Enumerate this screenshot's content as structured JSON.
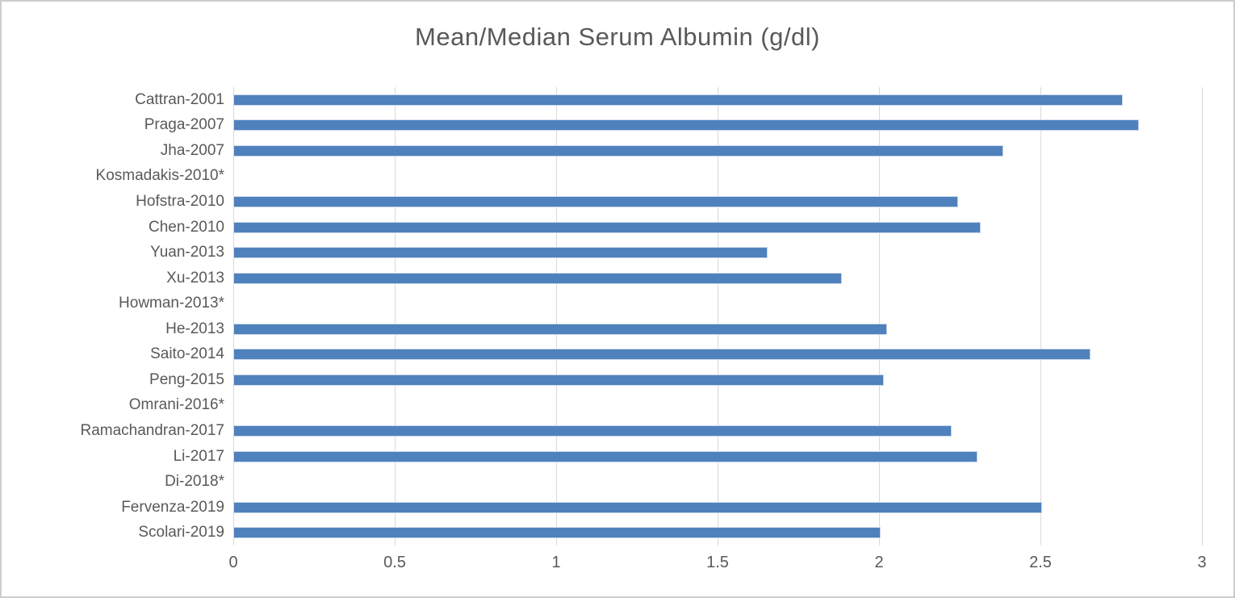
{
  "window": {
    "background": "#ffffff",
    "border_color": "#cdcdcd"
  },
  "chart_data": {
    "type": "bar",
    "orientation": "horizontal",
    "title": "Mean/Median Serum Albumin (g/dl)",
    "categories": [
      "Cattran-2001",
      "Praga-2007",
      "Jha-2007",
      "Kosmadakis-2010*",
      "Hofstra-2010",
      "Chen-2010",
      "Yuan-2013",
      "Xu-2013",
      "Howman-2013*",
      "He-2013",
      "Saito-2014",
      "Peng-2015",
      "Omrani-2016*",
      "Ramachandran-2017",
      "Li-2017",
      "Di-2018*",
      "Fervenza-2019",
      "Scolari-2019"
    ],
    "values": [
      2.75,
      2.8,
      2.38,
      0,
      2.24,
      2.31,
      1.65,
      1.88,
      0,
      2.02,
      2.65,
      2.01,
      0,
      2.22,
      2.3,
      0,
      2.5,
      2.0
    ],
    "xlabel": "",
    "ylabel": "",
    "xlim": [
      0,
      3
    ],
    "x_ticks": [
      0,
      0.5,
      1,
      1.5,
      2,
      2.5,
      3
    ],
    "x_tick_labels": [
      "0",
      "0.5",
      "1",
      "1.5",
      "2",
      "2.5",
      "3"
    ],
    "grid": "vertical-only",
    "legend": "none",
    "bar_color": "#4f81bd",
    "bar_halo_color": "#ccd9eb",
    "gridline_color": "#d9d9d9",
    "text_color": "#595959"
  }
}
